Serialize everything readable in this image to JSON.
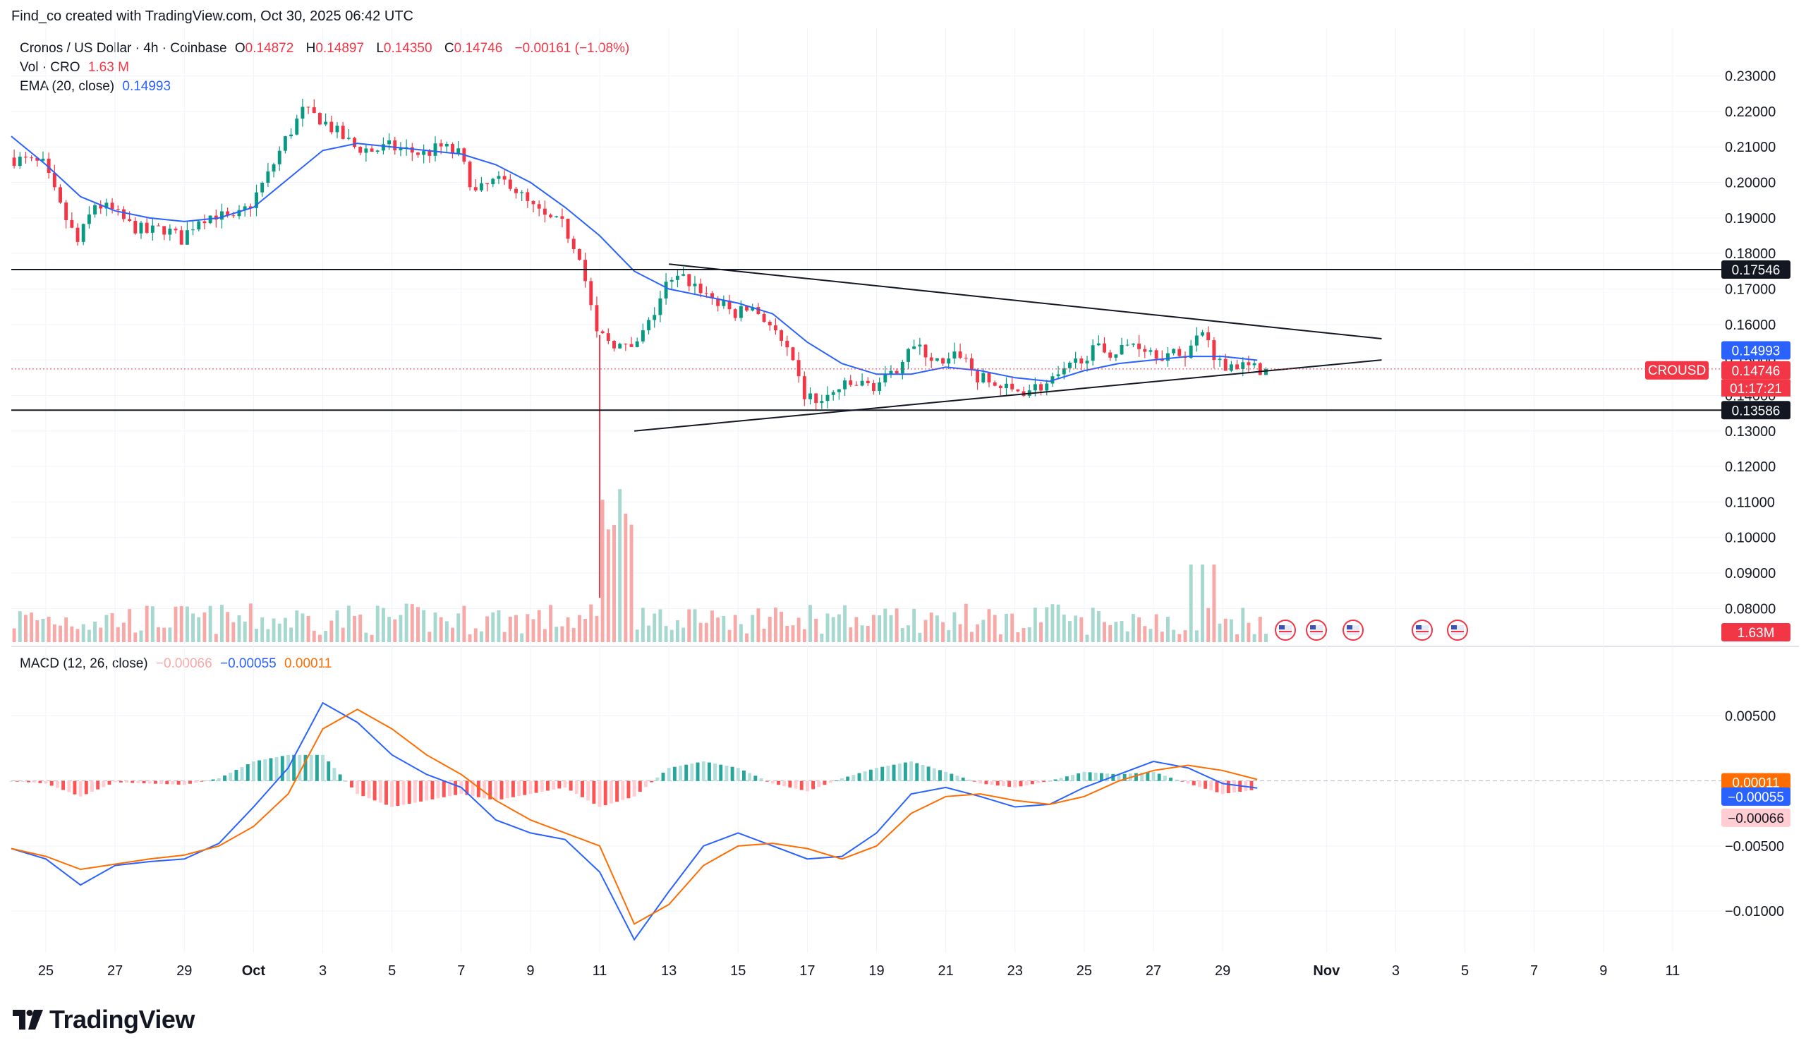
{
  "header": {
    "credit": "Find_co created with TradingView.com, Oct 30, 2025 06:42 UTC"
  },
  "legend": {
    "symbol": "Cronos / US Dollar · 4h · Coinbase",
    "open_label": "O",
    "open": "0.14872",
    "high_label": "H",
    "high": "0.14897",
    "low_label": "L",
    "low": "0.14350",
    "close_label": "C",
    "close": "0.14746",
    "change": "−0.00161 (−1.08%)",
    "vol_label": "Vol · CRO",
    "vol": "1.63 M",
    "ema_label": "EMA (20, close)",
    "ema": "0.14993",
    "macd_label": "MACD (12, 26, close)",
    "macd_hist": "−0.00066",
    "macd_line": "−0.00055",
    "macd_signal": "0.00011"
  },
  "badges": {
    "symbol": "CROUSD",
    "resistance": "0.17546",
    "ema": "0.14993",
    "price": "0.14746",
    "countdown": "01:17:21",
    "support": "0.13586",
    "volume": "1.63M",
    "macd_signal": "0.00011",
    "macd_line": "−0.00055",
    "macd_hist": "−0.00066"
  },
  "brand": {
    "name": "TradingView"
  },
  "colors": {
    "up": "#089981",
    "down": "#f23645",
    "ema": "#2962ff",
    "macd": "#2962ff",
    "signal": "#ff6d00"
  },
  "chart_data": [
    {
      "type": "candlestick",
      "title": "Cronos / US Dollar · 4h · Coinbase",
      "x_range": [
        "2025-09-24",
        "2025-11-12"
      ],
      "x_ticks": [
        "25",
        "27",
        "29",
        "Oct",
        "3",
        "5",
        "7",
        "9",
        "11",
        "13",
        "15",
        "17",
        "19",
        "21",
        "23",
        "25",
        "27",
        "29",
        "Nov",
        "3",
        "5",
        "7",
        "9",
        "11"
      ],
      "y_ticks": [
        "0.23000",
        "0.22000",
        "0.21000",
        "0.20000",
        "0.19000",
        "0.18000",
        "0.17000",
        "0.16000",
        "0.15000",
        "0.14000",
        "0.13000",
        "0.12000",
        "0.11000",
        "0.10000",
        "0.09000",
        "0.08000"
      ],
      "ylim": [
        0.0765,
        0.2325
      ],
      "close_path": [
        [
          "2025-09-24",
          0.207
        ],
        [
          "2025-09-25",
          0.205
        ],
        [
          "2025-09-25T12",
          0.193
        ],
        [
          "2025-09-26",
          0.183
        ],
        [
          "2025-09-26T12",
          0.194
        ],
        [
          "2025-09-27",
          0.192
        ],
        [
          "2025-09-27T12",
          0.188
        ],
        [
          "2025-09-28",
          0.186
        ],
        [
          "2025-09-28T12",
          0.187
        ],
        [
          "2025-09-29",
          0.184
        ],
        [
          "2025-09-29T12",
          0.19
        ],
        [
          "2025-09-30",
          0.191
        ],
        [
          "2025-09-30T12",
          0.189
        ],
        [
          "2025-10-01",
          0.194
        ],
        [
          "2025-10-01T12",
          0.202
        ],
        [
          "2025-10-02",
          0.212
        ],
        [
          "2025-10-02T12",
          0.22
        ],
        [
          "2025-10-03",
          0.218
        ],
        [
          "2025-10-03T12",
          0.214
        ],
        [
          "2025-10-04",
          0.21
        ],
        [
          "2025-10-04T12",
          0.209
        ],
        [
          "2025-10-05",
          0.21
        ],
        [
          "2025-10-05T12",
          0.209
        ],
        [
          "2025-10-06",
          0.208
        ],
        [
          "2025-10-06T12",
          0.21
        ],
        [
          "2025-10-07",
          0.208
        ],
        [
          "2025-10-07T12",
          0.197
        ],
        [
          "2025-10-08",
          0.2
        ],
        [
          "2025-10-08T12",
          0.2
        ],
        [
          "2025-10-09",
          0.194
        ],
        [
          "2025-10-09T12",
          0.19
        ],
        [
          "2025-10-10",
          0.188
        ],
        [
          "2025-10-10T12",
          0.18
        ],
        [
          "2025-10-11",
          0.157
        ],
        [
          "2025-10-11T12",
          0.155
        ],
        [
          "2025-10-12",
          0.152
        ],
        [
          "2025-10-12T12",
          0.16
        ],
        [
          "2025-10-13",
          0.171
        ],
        [
          "2025-10-13T12",
          0.173
        ],
        [
          "2025-10-14",
          0.17
        ],
        [
          "2025-10-14T12",
          0.166
        ],
        [
          "2025-10-15",
          0.163
        ],
        [
          "2025-10-15T12",
          0.165
        ],
        [
          "2025-10-16",
          0.16
        ],
        [
          "2025-10-16T12",
          0.152
        ],
        [
          "2025-10-17",
          0.14
        ],
        [
          "2025-10-17T12",
          0.138
        ],
        [
          "2025-10-18",
          0.142
        ],
        [
          "2025-10-18T12",
          0.143
        ],
        [
          "2025-10-19",
          0.143
        ],
        [
          "2025-10-19T12",
          0.145
        ],
        [
          "2025-10-20",
          0.154
        ],
        [
          "2025-10-20T12",
          0.152
        ],
        [
          "2025-10-21",
          0.148
        ],
        [
          "2025-10-21T12",
          0.152
        ],
        [
          "2025-10-22",
          0.145
        ],
        [
          "2025-10-22T12",
          0.143
        ],
        [
          "2025-10-23",
          0.141
        ],
        [
          "2025-10-23T12",
          0.142
        ],
        [
          "2025-10-24",
          0.143
        ],
        [
          "2025-10-24T12",
          0.146
        ],
        [
          "2025-10-25",
          0.151
        ],
        [
          "2025-10-25T12",
          0.153
        ],
        [
          "2025-10-26",
          0.152
        ],
        [
          "2025-10-26T12",
          0.155
        ],
        [
          "2025-10-27",
          0.153
        ],
        [
          "2025-10-27T12",
          0.151
        ],
        [
          "2025-10-28",
          0.152
        ],
        [
          "2025-10-28T12",
          0.158
        ],
        [
          "2025-10-29",
          0.149
        ],
        [
          "2025-10-29T12",
          0.1487
        ],
        [
          "2025-10-30",
          0.14746
        ]
      ],
      "ema_20": [
        [
          "2025-09-24",
          0.213
        ],
        [
          "2025-09-25",
          0.205
        ],
        [
          "2025-09-26",
          0.196
        ],
        [
          "2025-09-27",
          0.192
        ],
        [
          "2025-09-28",
          0.19
        ],
        [
          "2025-09-29",
          0.189
        ],
        [
          "2025-09-30",
          0.19
        ],
        [
          "2025-10-01",
          0.193
        ],
        [
          "2025-10-02",
          0.201
        ],
        [
          "2025-10-03",
          0.209
        ],
        [
          "2025-10-04",
          0.211
        ],
        [
          "2025-10-05",
          0.21
        ],
        [
          "2025-10-06",
          0.209
        ],
        [
          "2025-10-07",
          0.208
        ],
        [
          "2025-10-08",
          0.205
        ],
        [
          "2025-10-09",
          0.2
        ],
        [
          "2025-10-10",
          0.193
        ],
        [
          "2025-10-11",
          0.185
        ],
        [
          "2025-10-12",
          0.175
        ],
        [
          "2025-10-13",
          0.17
        ],
        [
          "2025-10-14",
          0.168
        ],
        [
          "2025-10-15",
          0.166
        ],
        [
          "2025-10-16",
          0.163
        ],
        [
          "2025-10-17",
          0.155
        ],
        [
          "2025-10-18",
          0.149
        ],
        [
          "2025-10-19",
          0.146
        ],
        [
          "2025-10-20",
          0.146
        ],
        [
          "2025-10-21",
          0.148
        ],
        [
          "2025-10-22",
          0.147
        ],
        [
          "2025-10-23",
          0.145
        ],
        [
          "2025-10-24",
          0.144
        ],
        [
          "2025-10-25",
          0.147
        ],
        [
          "2025-10-26",
          0.149
        ],
        [
          "2025-10-27",
          0.15
        ],
        [
          "2025-10-28",
          0.151
        ],
        [
          "2025-10-29",
          0.151
        ],
        [
          "2025-10-30",
          0.14993
        ]
      ],
      "resistance": 0.17546,
      "support": 0.13586,
      "trendlines": [
        {
          "name": "upper",
          "points": [
            [
              "2025-10-13",
              0.177
            ],
            [
              "2025-11-03",
              0.156
            ]
          ]
        },
        {
          "name": "lower",
          "points": [
            [
              "2025-10-12",
              0.13
            ],
            [
              "2025-11-03",
              0.15
            ]
          ]
        }
      ],
      "volume_note": "spike on 2025-10-11 and 2025-10-28",
      "grid": true
    },
    {
      "type": "line",
      "title": "MACD (12, 26, close)",
      "y_ticks": [
        "0.00500",
        "−0.00500",
        "−0.01000"
      ],
      "ylim": [
        -0.0132,
        0.0085
      ],
      "series": [
        {
          "name": "MACD",
          "values": [
            [
              "2025-09-24",
              -0.0052
            ],
            [
              "2025-09-25",
              -0.006
            ],
            [
              "2025-09-26",
              -0.008
            ],
            [
              "2025-09-27",
              -0.0065
            ],
            [
              "2025-09-28",
              -0.0062
            ],
            [
              "2025-09-29",
              -0.006
            ],
            [
              "2025-09-30",
              -0.0048
            ],
            [
              "2025-10-01",
              -0.002
            ],
            [
              "2025-10-02",
              0.001
            ],
            [
              "2025-10-03",
              0.006
            ],
            [
              "2025-10-04",
              0.0045
            ],
            [
              "2025-10-05",
              0.002
            ],
            [
              "2025-10-06",
              0.0005
            ],
            [
              "2025-10-07",
              -0.0005
            ],
            [
              "2025-10-08",
              -0.003
            ],
            [
              "2025-10-09",
              -0.004
            ],
            [
              "2025-10-10",
              -0.0045
            ],
            [
              "2025-10-11",
              -0.007
            ],
            [
              "2025-10-12",
              -0.0122
            ],
            [
              "2025-10-13",
              -0.0085
            ],
            [
              "2025-10-14",
              -0.005
            ],
            [
              "2025-10-15",
              -0.004
            ],
            [
              "2025-10-16",
              -0.005
            ],
            [
              "2025-10-17",
              -0.006
            ],
            [
              "2025-10-18",
              -0.0058
            ],
            [
              "2025-10-19",
              -0.004
            ],
            [
              "2025-10-20",
              -0.001
            ],
            [
              "2025-10-21",
              -0.0005
            ],
            [
              "2025-10-22",
              -0.0012
            ],
            [
              "2025-10-23",
              -0.002
            ],
            [
              "2025-10-24",
              -0.0018
            ],
            [
              "2025-10-25",
              -0.0005
            ],
            [
              "2025-10-26",
              0.0005
            ],
            [
              "2025-10-27",
              0.0015
            ],
            [
              "2025-10-28",
              0.001
            ],
            [
              "2025-10-29",
              -0.0002
            ],
            [
              "2025-10-30",
              -0.00055
            ]
          ]
        },
        {
          "name": "Signal",
          "values": [
            [
              "2025-09-24",
              -0.0052
            ],
            [
              "2025-09-25",
              -0.0058
            ],
            [
              "2025-09-26",
              -0.0068
            ],
            [
              "2025-09-27",
              -0.0064
            ],
            [
              "2025-09-28",
              -0.006
            ],
            [
              "2025-09-29",
              -0.0057
            ],
            [
              "2025-09-30",
              -0.005
            ],
            [
              "2025-10-01",
              -0.0035
            ],
            [
              "2025-10-02",
              -0.001
            ],
            [
              "2025-10-03",
              0.004
            ],
            [
              "2025-10-04",
              0.0055
            ],
            [
              "2025-10-05",
              0.004
            ],
            [
              "2025-10-06",
              0.002
            ],
            [
              "2025-10-07",
              0.0005
            ],
            [
              "2025-10-08",
              -0.0015
            ],
            [
              "2025-10-09",
              -0.003
            ],
            [
              "2025-10-10",
              -0.004
            ],
            [
              "2025-10-11",
              -0.005
            ],
            [
              "2025-10-12",
              -0.011
            ],
            [
              "2025-10-13",
              -0.0095
            ],
            [
              "2025-10-14",
              -0.0065
            ],
            [
              "2025-10-15",
              -0.005
            ],
            [
              "2025-10-16",
              -0.0048
            ],
            [
              "2025-10-17",
              -0.0052
            ],
            [
              "2025-10-18",
              -0.006
            ],
            [
              "2025-10-19",
              -0.005
            ],
            [
              "2025-10-20",
              -0.0025
            ],
            [
              "2025-10-21",
              -0.0012
            ],
            [
              "2025-10-22",
              -0.001
            ],
            [
              "2025-10-23",
              -0.0015
            ],
            [
              "2025-10-24",
              -0.0018
            ],
            [
              "2025-10-25",
              -0.0012
            ],
            [
              "2025-10-26",
              0.0
            ],
            [
              "2025-10-27",
              0.0008
            ],
            [
              "2025-10-28",
              0.0012
            ],
            [
              "2025-10-29",
              0.0008
            ],
            [
              "2025-10-30",
              0.00011
            ]
          ]
        }
      ],
      "grid": true
    }
  ]
}
